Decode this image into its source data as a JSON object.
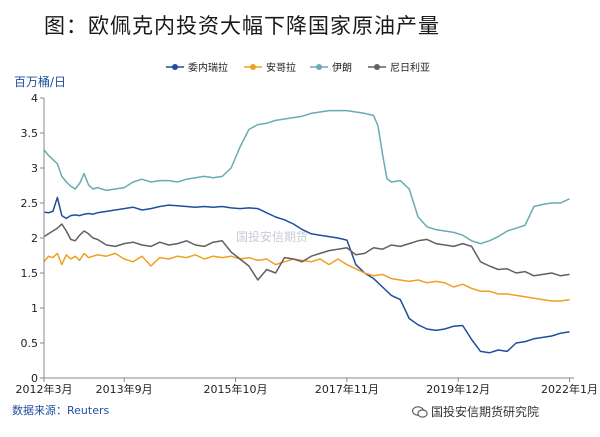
{
  "title": "图：欧佩克内投资大幅下降国家原油产量",
  "ylabel": "百万桶/日",
  "source": "数据来源：Reuters",
  "brand": "国投安信期货研究院",
  "watermark": "国投安信期货",
  "chart_data": {
    "type": "line",
    "y_ticks": [
      "0",
      "0.5",
      "1",
      "1.5",
      "2",
      "2.5",
      "3",
      "3.5",
      "4"
    ],
    "ylim": [
      0,
      4
    ],
    "x_ticks": [
      "2012年3月",
      "2013年9月",
      "2015年10月",
      "2017年11月",
      "2019年12月",
      "2022年1月"
    ],
    "x_tick_months": [
      0,
      18,
      43,
      68,
      93,
      118
    ],
    "x_months_total": 119,
    "grid": false,
    "legend_position": "top",
    "series": [
      {
        "name": "委内瑞拉",
        "color": "#1f4e9c",
        "points": [
          [
            0,
            2.37
          ],
          [
            1,
            2.36
          ],
          [
            2,
            2.38
          ],
          [
            3,
            2.58
          ],
          [
            4,
            2.32
          ],
          [
            5,
            2.28
          ],
          [
            6,
            2.32
          ],
          [
            7,
            2.33
          ],
          [
            8,
            2.32
          ],
          [
            9,
            2.34
          ],
          [
            10,
            2.35
          ],
          [
            11,
            2.34
          ],
          [
            12,
            2.36
          ],
          [
            14,
            2.38
          ],
          [
            16,
            2.4
          ],
          [
            18,
            2.42
          ],
          [
            20,
            2.44
          ],
          [
            22,
            2.4
          ],
          [
            24,
            2.42
          ],
          [
            26,
            2.45
          ],
          [
            28,
            2.47
          ],
          [
            30,
            2.46
          ],
          [
            32,
            2.45
          ],
          [
            34,
            2.44
          ],
          [
            36,
            2.45
          ],
          [
            38,
            2.44
          ],
          [
            40,
            2.45
          ],
          [
            42,
            2.43
          ],
          [
            44,
            2.42
          ],
          [
            46,
            2.43
          ],
          [
            48,
            2.42
          ],
          [
            50,
            2.36
          ],
          [
            52,
            2.3
          ],
          [
            54,
            2.26
          ],
          [
            56,
            2.2
          ],
          [
            58,
            2.12
          ],
          [
            60,
            2.06
          ],
          [
            62,
            2.04
          ],
          [
            64,
            2.02
          ],
          [
            66,
            2.0
          ],
          [
            68,
            1.97
          ],
          [
            69,
            1.8
          ],
          [
            70,
            1.62
          ],
          [
            72,
            1.5
          ],
          [
            74,
            1.42
          ],
          [
            76,
            1.3
          ],
          [
            78,
            1.18
          ],
          [
            80,
            1.12
          ],
          [
            82,
            0.85
          ],
          [
            84,
            0.76
          ],
          [
            86,
            0.7
          ],
          [
            88,
            0.68
          ],
          [
            90,
            0.7
          ],
          [
            92,
            0.74
          ],
          [
            94,
            0.75
          ],
          [
            96,
            0.55
          ],
          [
            98,
            0.38
          ],
          [
            100,
            0.36
          ],
          [
            102,
            0.4
          ],
          [
            104,
            0.38
          ],
          [
            106,
            0.5
          ],
          [
            108,
            0.52
          ],
          [
            110,
            0.56
          ],
          [
            112,
            0.58
          ],
          [
            114,
            0.6
          ],
          [
            116,
            0.64
          ],
          [
            118,
            0.66
          ]
        ]
      },
      {
        "name": "安哥拉",
        "color": "#f0a020",
        "points": [
          [
            0,
            1.66
          ],
          [
            1,
            1.74
          ],
          [
            2,
            1.72
          ],
          [
            3,
            1.78
          ],
          [
            4,
            1.62
          ],
          [
            5,
            1.76
          ],
          [
            6,
            1.7
          ],
          [
            7,
            1.74
          ],
          [
            8,
            1.68
          ],
          [
            9,
            1.78
          ],
          [
            10,
            1.72
          ],
          [
            12,
            1.76
          ],
          [
            14,
            1.74
          ],
          [
            16,
            1.78
          ],
          [
            18,
            1.7
          ],
          [
            20,
            1.66
          ],
          [
            22,
            1.74
          ],
          [
            24,
            1.6
          ],
          [
            26,
            1.72
          ],
          [
            28,
            1.7
          ],
          [
            30,
            1.74
          ],
          [
            32,
            1.72
          ],
          [
            34,
            1.76
          ],
          [
            36,
            1.7
          ],
          [
            38,
            1.74
          ],
          [
            40,
            1.72
          ],
          [
            42,
            1.74
          ],
          [
            44,
            1.7
          ],
          [
            46,
            1.72
          ],
          [
            48,
            1.68
          ],
          [
            50,
            1.7
          ],
          [
            52,
            1.62
          ],
          [
            54,
            1.66
          ],
          [
            56,
            1.7
          ],
          [
            58,
            1.68
          ],
          [
            60,
            1.66
          ],
          [
            62,
            1.7
          ],
          [
            64,
            1.62
          ],
          [
            66,
            1.7
          ],
          [
            68,
            1.62
          ],
          [
            70,
            1.56
          ],
          [
            72,
            1.5
          ],
          [
            74,
            1.46
          ],
          [
            76,
            1.48
          ],
          [
            78,
            1.42
          ],
          [
            80,
            1.4
          ],
          [
            82,
            1.38
          ],
          [
            84,
            1.4
          ],
          [
            86,
            1.36
          ],
          [
            88,
            1.38
          ],
          [
            90,
            1.36
          ],
          [
            92,
            1.3
          ],
          [
            94,
            1.34
          ],
          [
            96,
            1.28
          ],
          [
            98,
            1.24
          ],
          [
            100,
            1.24
          ],
          [
            102,
            1.2
          ],
          [
            104,
            1.2
          ],
          [
            106,
            1.18
          ],
          [
            108,
            1.16
          ],
          [
            110,
            1.14
          ],
          [
            112,
            1.12
          ],
          [
            114,
            1.1
          ],
          [
            116,
            1.1
          ],
          [
            118,
            1.12
          ]
        ]
      },
      {
        "name": "伊朗",
        "color": "#6aabb3",
        "points": [
          [
            0,
            3.26
          ],
          [
            1,
            3.18
          ],
          [
            2,
            3.12
          ],
          [
            3,
            3.06
          ],
          [
            4,
            2.88
          ],
          [
            5,
            2.8
          ],
          [
            6,
            2.74
          ],
          [
            7,
            2.7
          ],
          [
            8,
            2.78
          ],
          [
            9,
            2.92
          ],
          [
            10,
            2.76
          ],
          [
            11,
            2.7
          ],
          [
            12,
            2.72
          ],
          [
            14,
            2.68
          ],
          [
            16,
            2.7
          ],
          [
            18,
            2.72
          ],
          [
            20,
            2.8
          ],
          [
            22,
            2.84
          ],
          [
            24,
            2.8
          ],
          [
            26,
            2.82
          ],
          [
            28,
            2.82
          ],
          [
            30,
            2.8
          ],
          [
            32,
            2.84
          ],
          [
            34,
            2.86
          ],
          [
            36,
            2.88
          ],
          [
            38,
            2.86
          ],
          [
            40,
            2.88
          ],
          [
            42,
            3.0
          ],
          [
            44,
            3.3
          ],
          [
            46,
            3.55
          ],
          [
            48,
            3.62
          ],
          [
            50,
            3.64
          ],
          [
            52,
            3.68
          ],
          [
            54,
            3.7
          ],
          [
            56,
            3.72
          ],
          [
            58,
            3.74
          ],
          [
            60,
            3.78
          ],
          [
            62,
            3.8
          ],
          [
            64,
            3.82
          ],
          [
            66,
            3.82
          ],
          [
            68,
            3.82
          ],
          [
            70,
            3.8
          ],
          [
            72,
            3.78
          ],
          [
            74,
            3.75
          ],
          [
            75,
            3.6
          ],
          [
            76,
            3.2
          ],
          [
            77,
            2.85
          ],
          [
            78,
            2.8
          ],
          [
            80,
            2.82
          ],
          [
            82,
            2.7
          ],
          [
            84,
            2.3
          ],
          [
            86,
            2.16
          ],
          [
            88,
            2.12
          ],
          [
            90,
            2.1
          ],
          [
            92,
            2.08
          ],
          [
            94,
            2.04
          ],
          [
            96,
            1.96
          ],
          [
            98,
            1.92
          ],
          [
            100,
            1.96
          ],
          [
            102,
            2.02
          ],
          [
            104,
            2.1
          ],
          [
            106,
            2.14
          ],
          [
            108,
            2.18
          ],
          [
            110,
            2.45
          ],
          [
            112,
            2.48
          ],
          [
            114,
            2.5
          ],
          [
            116,
            2.5
          ],
          [
            118,
            2.56
          ]
        ]
      },
      {
        "name": "尼日利亚",
        "color": "#606060",
        "points": [
          [
            0,
            2.02
          ],
          [
            1,
            2.06
          ],
          [
            2,
            2.1
          ],
          [
            3,
            2.14
          ],
          [
            4,
            2.2
          ],
          [
            5,
            2.1
          ],
          [
            6,
            1.98
          ],
          [
            7,
            1.96
          ],
          [
            8,
            2.04
          ],
          [
            9,
            2.1
          ],
          [
            10,
            2.06
          ],
          [
            11,
            2.0
          ],
          [
            12,
            1.98
          ],
          [
            14,
            1.9
          ],
          [
            16,
            1.88
          ],
          [
            18,
            1.92
          ],
          [
            20,
            1.94
          ],
          [
            22,
            1.9
          ],
          [
            24,
            1.88
          ],
          [
            26,
            1.94
          ],
          [
            28,
            1.9
          ],
          [
            30,
            1.92
          ],
          [
            32,
            1.96
          ],
          [
            34,
            1.9
          ],
          [
            36,
            1.88
          ],
          [
            38,
            1.94
          ],
          [
            40,
            1.96
          ],
          [
            42,
            1.8
          ],
          [
            44,
            1.7
          ],
          [
            46,
            1.6
          ],
          [
            48,
            1.4
          ],
          [
            50,
            1.55
          ],
          [
            52,
            1.5
          ],
          [
            54,
            1.72
          ],
          [
            56,
            1.7
          ],
          [
            58,
            1.66
          ],
          [
            60,
            1.74
          ],
          [
            62,
            1.78
          ],
          [
            64,
            1.82
          ],
          [
            66,
            1.84
          ],
          [
            68,
            1.86
          ],
          [
            70,
            1.76
          ],
          [
            72,
            1.78
          ],
          [
            74,
            1.86
          ],
          [
            76,
            1.84
          ],
          [
            78,
            1.9
          ],
          [
            80,
            1.88
          ],
          [
            82,
            1.92
          ],
          [
            84,
            1.96
          ],
          [
            86,
            1.98
          ],
          [
            88,
            1.92
          ],
          [
            90,
            1.9
          ],
          [
            92,
            1.88
          ],
          [
            94,
            1.92
          ],
          [
            96,
            1.88
          ],
          [
            98,
            1.66
          ],
          [
            100,
            1.6
          ],
          [
            102,
            1.55
          ],
          [
            104,
            1.56
          ],
          [
            106,
            1.5
          ],
          [
            108,
            1.52
          ],
          [
            110,
            1.46
          ],
          [
            112,
            1.48
          ],
          [
            114,
            1.5
          ],
          [
            116,
            1.46
          ],
          [
            118,
            1.48
          ]
        ]
      }
    ]
  }
}
